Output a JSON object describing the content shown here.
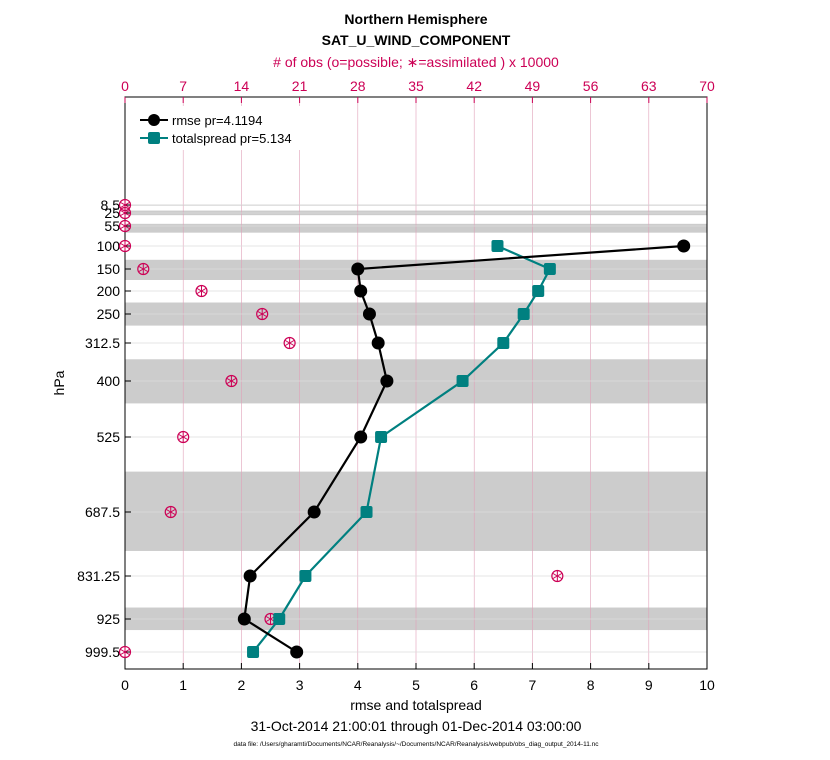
{
  "chart_data": {
    "type": "line",
    "title": "Northern Hemisphere",
    "subtitle": "SAT_U_WIND_COMPONENT",
    "top_axis_label": "# of obs (o=possible; ∗=assimilated ) x 10000",
    "xlabel": "rmse and totalspread",
    "ylabel": "hPa",
    "date_range": "31-Oct-2014 21:00:01 through 01-Dec-2014 03:00:00",
    "footnote": "data file: /Users/gharamti/Documents/NCAR/Reanalysis/~/Documents/NCAR/Reanalysis/webpub/obs_diag_output_2014-11.nc",
    "xlim": [
      0,
      10
    ],
    "x_ticks": [
      "0",
      "1",
      "2",
      "3",
      "4",
      "5",
      "6",
      "7",
      "8",
      "9",
      "10"
    ],
    "top_xlim": [
      0,
      70
    ],
    "top_ticks": [
      "0",
      "7",
      "14",
      "21",
      "28",
      "35",
      "42",
      "49",
      "56",
      "63",
      "70"
    ],
    "y_ticks": [
      "8.5",
      "25",
      "55",
      "100",
      "150",
      "200",
      "250",
      "312.5",
      "400",
      "525",
      "687.5",
      "831.25",
      "925",
      "999.5"
    ],
    "legend_position": "top-left",
    "colors": {
      "rmse": "#000000",
      "totalspread": "#008080",
      "obs": "#cc0055",
      "band": "#cccccc"
    },
    "levels": [
      8.5,
      25,
      55,
      100,
      150,
      200,
      250,
      312.5,
      400,
      525,
      687.5,
      831.25,
      925,
      999.5
    ],
    "series": [
      {
        "name": "rmse pr=4.1194",
        "levels": [
          100,
          150,
          200,
          250,
          312.5,
          400,
          525,
          687.5,
          831.25,
          925,
          999.5
        ],
        "values": [
          9.6,
          4.0,
          4.05,
          4.2,
          4.35,
          4.5,
          4.05,
          3.25,
          2.15,
          2.05,
          2.95
        ]
      },
      {
        "name": "totalspread pr=5.134",
        "levels": [
          100,
          150,
          200,
          250,
          312.5,
          400,
          525,
          687.5,
          831.25,
          925,
          999.5
        ],
        "values": [
          6.4,
          7.3,
          7.1,
          6.85,
          6.5,
          5.8,
          4.4,
          4.15,
          3.1,
          2.65,
          2.2
        ]
      }
    ],
    "obs_counts": {
      "levels": [
        8.5,
        25,
        55,
        100,
        150,
        200,
        250,
        312.5,
        400,
        525,
        687.5,
        831.25,
        925,
        999.5
      ],
      "possible": [
        0,
        0,
        0,
        0,
        2.2,
        9.2,
        16.5,
        19.8,
        12.8,
        7.0,
        5.5,
        52.0,
        17.5,
        0
      ],
      "assimilated": [
        0,
        0,
        0,
        0,
        2.2,
        9.2,
        16.5,
        19.8,
        12.8,
        7.0,
        5.5,
        52.0,
        17.5,
        0
      ]
    },
    "grid": true,
    "level_bands": [
      [
        7.5,
        10
      ],
      [
        20,
        30
      ],
      [
        50,
        70
      ],
      [
        130,
        175
      ],
      [
        225,
        275
      ],
      [
        350,
        450
      ],
      [
        600,
        775
      ],
      [
        900,
        950
      ]
    ]
  }
}
